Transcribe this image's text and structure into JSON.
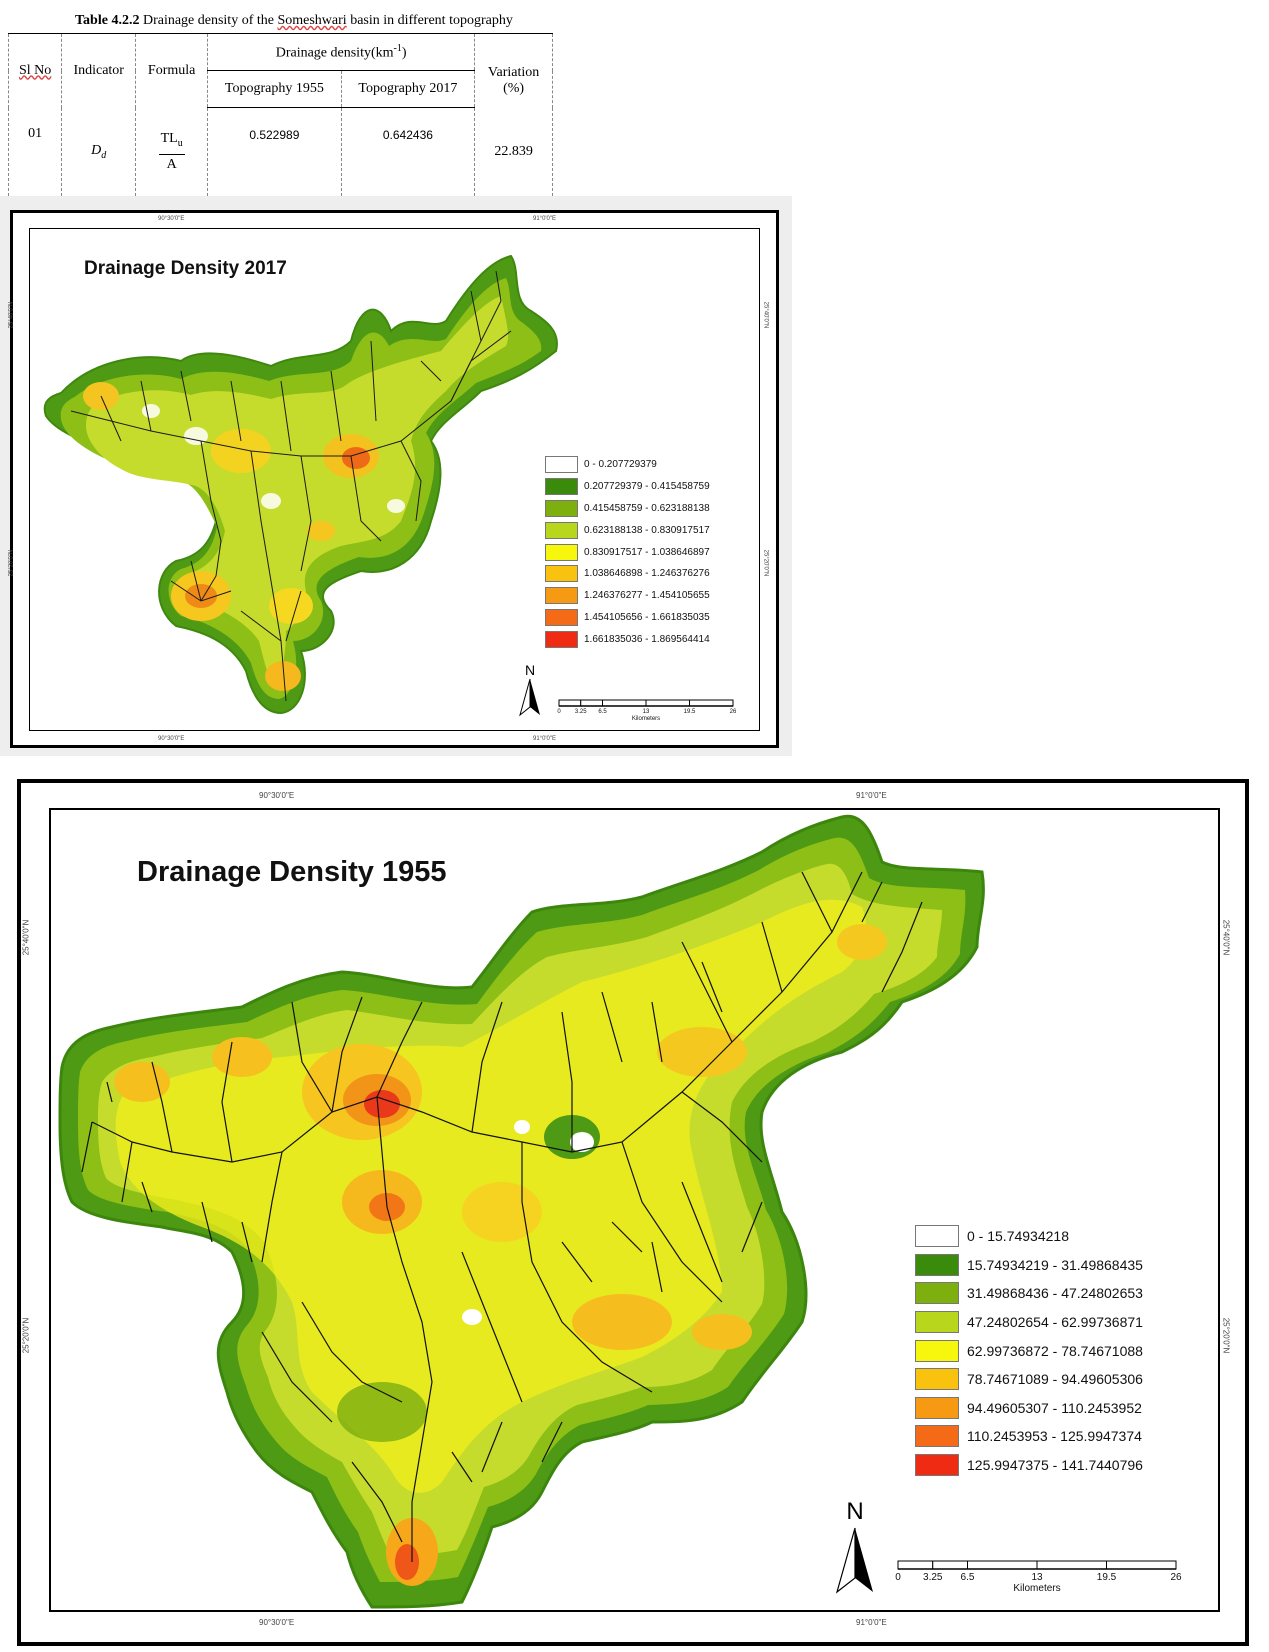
{
  "table": {
    "caption_bold": "Table 4.2.2",
    "caption_pre": " Drainage density of the ",
    "caption_basin": "Someshwari",
    "caption_post": " basin in different topography",
    "headers": {
      "sl_no": "Sl No",
      "indicator": "Indicator",
      "formula": "Formula",
      "group": "Drainage density(km",
      "group_sup": "-1",
      "group_close": ")",
      "topo1955": "Topography 1955",
      "topo2017": "Topography 2017",
      "variation": "Variation (%)"
    },
    "row": {
      "sl_no": "01",
      "indicator": "D",
      "indicator_sub": "d",
      "formula_num": "TL",
      "formula_num_sub": "u",
      "formula_den": "A",
      "topo1955": "0.522989",
      "topo2017": "0.642436",
      "variation": "22.839"
    }
  },
  "map2017": {
    "title": "Drainage Density 2017",
    "coords": {
      "top_left": "90°30'0\"E",
      "top_right": "91°0'0\"E",
      "bottom_left": "90°30'0\"E",
      "bottom_right": "91°0'0\"E",
      "left_top": "25°40'0\"N",
      "left_bottom": "25°20'0\"N",
      "right_top": "25°40'0\"N",
      "right_bottom": "25°20'0\"N"
    },
    "legend": [
      {
        "label": "0 - 0.207729379",
        "color": "#ffffff"
      },
      {
        "label": "0.207729379 - 0.415458759",
        "color": "#3a8a0c"
      },
      {
        "label": "0.415458759 - 0.623188138",
        "color": "#7db00f"
      },
      {
        "label": "0.623188138 - 0.830917517",
        "color": "#b8d61c"
      },
      {
        "label": "0.830917517 - 1.038646897",
        "color": "#f7f70e"
      },
      {
        "label": "1.038646898 - 1.246376276",
        "color": "#f9c20f"
      },
      {
        "label": "1.246376277 - 1.454105655",
        "color": "#f79a13"
      },
      {
        "label": "1.454105656 - 1.661835035",
        "color": "#f46a16"
      },
      {
        "label": "1.661835036 - 1.869564414",
        "color": "#ef2b14"
      }
    ],
    "north": "N",
    "scale_ticks": [
      "0",
      "3.25",
      "6.5",
      "13",
      "19.5",
      "26"
    ],
    "scale_unit": "Kilometers"
  },
  "map1955": {
    "title": "Drainage Density 1955",
    "coords": {
      "top_left": "90°30'0\"E",
      "top_right": "91°0'0\"E",
      "bottom_left": "90°30'0\"E",
      "bottom_right": "91°0'0\"E",
      "left_top": "25°40'0\"N",
      "left_bottom": "25°20'0\"N",
      "right_top": "25°40'0\"N",
      "right_bottom": "25°20'0\"N"
    },
    "legend": [
      {
        "label": "0 - 15.74934218",
        "color": "#ffffff"
      },
      {
        "label": "15.74934219 - 31.49868435",
        "color": "#3a8a0c"
      },
      {
        "label": "31.49868436 - 47.24802653",
        "color": "#7db00f"
      },
      {
        "label": "47.24802654 - 62.99736871",
        "color": "#b8d61c"
      },
      {
        "label": "62.99736872 - 78.74671088",
        "color": "#f7f70e"
      },
      {
        "label": "78.74671089 - 94.49605306",
        "color": "#f9c20f"
      },
      {
        "label": "94.49605307 - 110.2453952",
        "color": "#f79a13"
      },
      {
        "label": "110.2453953 - 125.9947374",
        "color": "#f46a16"
      },
      {
        "label": "125.9947375 - 141.7440796",
        "color": "#ef2b14"
      }
    ],
    "north": "N",
    "scale_ticks": [
      "0",
      "3.25",
      "6.5",
      "13",
      "19.5",
      "26"
    ],
    "scale_unit": "Kilometers"
  }
}
